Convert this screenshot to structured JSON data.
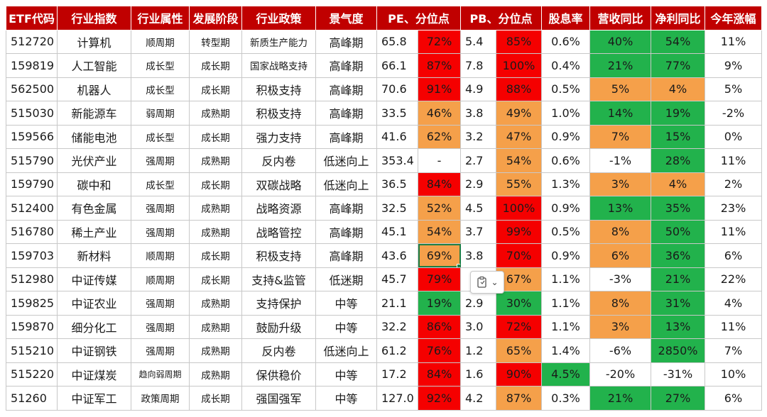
{
  "headers": [
    "ETF代码",
    "行业指数",
    "行业属性",
    "发展阶段",
    "行业政策",
    "景气度",
    "PE、分位点",
    "PB、分位点",
    "股息率",
    "营收同比",
    "净利同比",
    "今年涨幅"
  ],
  "rows": [
    {
      "code": "512720",
      "index": "计算机",
      "attr": "顺周期",
      "stage": "转型期",
      "policy": "新质生产能力",
      "boom": "高峰期",
      "pe": "65.8",
      "pe_pct": "72%",
      "pe_c": "red",
      "pb": "5.4",
      "pb_pct": "85%",
      "pb_c": "red",
      "div": "0.6%",
      "div_c": "white",
      "rev": "40%",
      "rev_c": "green",
      "np": "54%",
      "np_c": "green",
      "ytd": "11%"
    },
    {
      "code": "159819",
      "index": "人工智能",
      "attr": "成长型",
      "stage": "成长期",
      "policy": "国家战略支持",
      "boom": "高峰期",
      "pe": "66.1",
      "pe_pct": "87%",
      "pe_c": "red",
      "pb": "7.8",
      "pb_pct": "100%",
      "pb_c": "red",
      "div": "0.4%",
      "div_c": "white",
      "rev": "21%",
      "rev_c": "green",
      "np": "77%",
      "np_c": "green",
      "ytd": "9%"
    },
    {
      "code": "562500",
      "index": "机器人",
      "attr": "成长型",
      "stage": "成长期",
      "policy": "积极支持",
      "boom": "高峰期",
      "pe": "70.6",
      "pe_pct": "91%",
      "pe_c": "red",
      "pb": "4.9",
      "pb_pct": "88%",
      "pb_c": "red",
      "div": "0.5%",
      "div_c": "white",
      "rev": "5%",
      "rev_c": "orange",
      "np": "4%",
      "np_c": "orange",
      "ytd": "5%"
    },
    {
      "code": "515030",
      "index": "新能源车",
      "attr": "弱周期",
      "stage": "成熟期",
      "policy": "积极支持",
      "boom": "高峰期",
      "pe": "33.5",
      "pe_pct": "46%",
      "pe_c": "orange",
      "pb": "3.8",
      "pb_pct": "49%",
      "pb_c": "orange",
      "div": "1.0%",
      "div_c": "white",
      "rev": "14%",
      "rev_c": "green",
      "np": "19%",
      "np_c": "green",
      "ytd": "-2%"
    },
    {
      "code": "159566",
      "index": "储能电池",
      "attr": "成长型",
      "stage": "成长期",
      "policy": "强力支持",
      "boom": "高峰期",
      "pe": "41.6",
      "pe_pct": "62%",
      "pe_c": "orange",
      "pb": "3.2",
      "pb_pct": "47%",
      "pb_c": "orange",
      "div": "0.9%",
      "div_c": "white",
      "rev": "7%",
      "rev_c": "orange",
      "np": "15%",
      "np_c": "green",
      "ytd": "0%"
    },
    {
      "code": "515790",
      "index": "光伏产业",
      "attr": "强周期",
      "stage": "成熟期",
      "policy": "反内卷",
      "boom": "低迷向上",
      "pe": "353.4",
      "pe_pct": "-",
      "pe_c": "white",
      "pb": "2.7",
      "pb_pct": "54%",
      "pb_c": "orange",
      "div": "0.6%",
      "div_c": "white",
      "rev": "-1%",
      "rev_c": "white",
      "np": "28%",
      "np_c": "green",
      "ytd": "11%"
    },
    {
      "code": "159790",
      "index": "碳中和",
      "attr": "成长型",
      "stage": "成长期",
      "policy": "双碳战略",
      "boom": "低迷向上",
      "pe": "36.5",
      "pe_pct": "84%",
      "pe_c": "red",
      "pb": "2.9",
      "pb_pct": "55%",
      "pb_c": "orange",
      "div": "1.3%",
      "div_c": "white",
      "rev": "3%",
      "rev_c": "orange",
      "np": "4%",
      "np_c": "orange",
      "ytd": "2%"
    },
    {
      "code": "512400",
      "index": "有色金属",
      "attr": "强周期",
      "stage": "成熟期",
      "policy": "战略资源",
      "boom": "高峰期",
      "pe": "32.5",
      "pe_pct": "52%",
      "pe_c": "orange",
      "pb": "4.5",
      "pb_pct": "100%",
      "pb_c": "red",
      "div": "0.9%",
      "div_c": "white",
      "rev": "13%",
      "rev_c": "green",
      "np": "35%",
      "np_c": "green",
      "ytd": "23%"
    },
    {
      "code": "516780",
      "index": "稀土产业",
      "attr": "强周期",
      "stage": "成熟期",
      "policy": "战略管控",
      "boom": "高峰期",
      "pe": "45.1",
      "pe_pct": "54%",
      "pe_c": "orange",
      "pb": "3.7",
      "pb_pct": "99%",
      "pb_c": "red",
      "div": "0.5%",
      "div_c": "white",
      "rev": "8%",
      "rev_c": "orange",
      "np": "50%",
      "np_c": "green",
      "ytd": "11%"
    },
    {
      "code": "159703",
      "index": "新材料",
      "attr": "顺周期",
      "stage": "成长期",
      "policy": "积极支持",
      "boom": "高峰期",
      "pe": "43.6",
      "pe_pct": "69%",
      "pe_c": "orange",
      "pb": "3.8",
      "pb_pct": "70%",
      "pb_c": "red",
      "div": "0.9%",
      "div_c": "white",
      "rev": "6%",
      "rev_c": "orange",
      "np": "36%",
      "np_c": "green",
      "ytd": "6%"
    },
    {
      "code": "512980",
      "index": "中证传媒",
      "attr": "顺周期",
      "stage": "成长期",
      "policy": "支持&监管",
      "boom": "低迷期",
      "pe": "45.7",
      "pe_pct": "79%",
      "pe_c": "red",
      "pb": "",
      "pb_pct": "67%",
      "pb_c": "orange",
      "div": "1.1%",
      "div_c": "white",
      "rev": "-3%",
      "rev_c": "white",
      "np": "21%",
      "np_c": "green",
      "ytd": "22%"
    },
    {
      "code": "159825",
      "index": "中证农业",
      "attr": "强周期",
      "stage": "成熟期",
      "policy": "支持保护",
      "boom": "中等",
      "pe": "21.1",
      "pe_pct": "19%",
      "pe_c": "green",
      "pb": "2.9",
      "pb_pct": "30%",
      "pb_c": "green",
      "div": "1.1%",
      "div_c": "white",
      "rev": "8%",
      "rev_c": "orange",
      "np": "31%",
      "np_c": "green",
      "ytd": "4%"
    },
    {
      "code": "159870",
      "index": "细分化工",
      "attr": "强周期",
      "stage": "成熟期",
      "policy": "鼓励升级",
      "boom": "中等",
      "pe": "32.2",
      "pe_pct": "86%",
      "pe_c": "red",
      "pb": "3.0",
      "pb_pct": "72%",
      "pb_c": "red",
      "div": "1.1%",
      "div_c": "white",
      "rev": "3%",
      "rev_c": "orange",
      "np": "13%",
      "np_c": "green",
      "ytd": "11%"
    },
    {
      "code": "515210",
      "index": "中证钢铁",
      "attr": "强周期",
      "stage": "成熟期",
      "policy": "反内卷",
      "boom": "低迷向上",
      "pe": "61.2",
      "pe_pct": "76%",
      "pe_c": "red",
      "pb": "1.2",
      "pb_pct": "65%",
      "pb_c": "orange",
      "div": "1.4%",
      "div_c": "white",
      "rev": "-6%",
      "rev_c": "white",
      "np": "2850%",
      "np_c": "green",
      "ytd": "7%"
    },
    {
      "code": "515220",
      "index": "中证煤炭",
      "attr": "趋向弱周期",
      "stage": "成熟期",
      "policy": "保供稳价",
      "boom": "中等",
      "pe": "17.2",
      "pe_pct": "84%",
      "pe_c": "red",
      "pb": "1.6",
      "pb_pct": "90%",
      "pb_c": "red",
      "div": "4.5%",
      "div_c": "green",
      "rev": "-20%",
      "rev_c": "white",
      "np": "-31%",
      "np_c": "white",
      "ytd": "10%"
    },
    {
      "code": "51260",
      "index": "中证军工",
      "attr": "政策周期",
      "stage": "成长期",
      "policy": "强国强军",
      "boom": "中等",
      "pe": "127.0",
      "pe_pct": "92%",
      "pe_c": "red",
      "pb": "4.2",
      "pb_pct": "87%",
      "pb_c": "orange",
      "div": "0.3%",
      "div_c": "white",
      "rev": "21%",
      "rev_c": "green",
      "np": "27%",
      "np_c": "green",
      "ytd": "6%"
    }
  ],
  "selected_cell": {
    "row": 9,
    "col": "pe_pct"
  },
  "paste_options_icon": "clipboard-paste-options-icon",
  "colors": {
    "red": "#f50000",
    "orange": "#f5a04a",
    "green": "#22b24c",
    "header": "#c00000"
  }
}
